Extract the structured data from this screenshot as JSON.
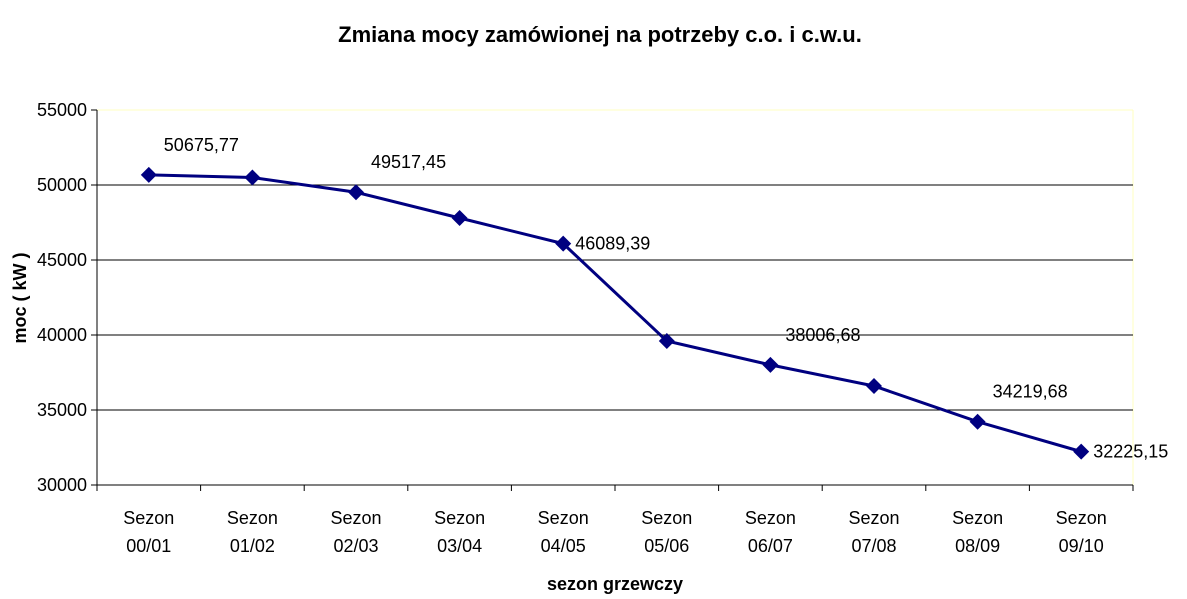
{
  "chart_data": {
    "type": "line",
    "title": "Zmiana mocy zamówionej na potrzeby c.o. i c.w.u.",
    "x_label": "sezon grzewczy",
    "y_label": "moc ( kW )",
    "categories": [
      "Sezon 00/01",
      "Sezon 01/02",
      "Sezon 02/03",
      "Sezon 03/04",
      "Sezon 04/05",
      "Sezon 05/06",
      "Sezon 06/07",
      "Sezon 07/08",
      "Sezon 08/09",
      "Sezon 09/10"
    ],
    "series": [
      {
        "name": "moc",
        "color": "#000080",
        "values": [
          50675.77,
          50500,
          49517.45,
          47800,
          46089.39,
          39600,
          38006.68,
          36600,
          34219.68,
          32225.15
        ],
        "value_labels": [
          "50675,77",
          null,
          "49517,45",
          null,
          "46089,39",
          null,
          "38006,68",
          null,
          "34219,68",
          "32225,15"
        ]
      }
    ],
    "ylim": [
      30000,
      55000
    ],
    "yticks": [
      30000,
      35000,
      40000,
      45000,
      50000,
      55000
    ],
    "grid": true
  }
}
